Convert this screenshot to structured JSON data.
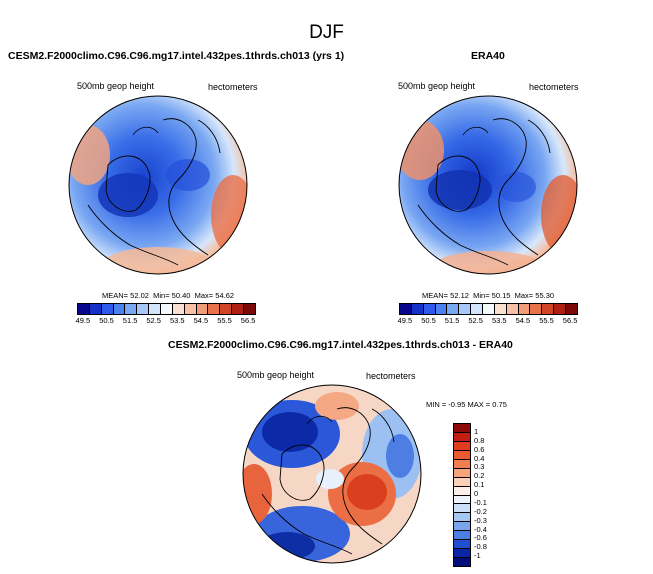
{
  "title": "DJF",
  "panels": [
    {
      "title": "CESM2.F2000climo.C96.C96.mg17.intel.432pes.1thrds.ch013 (yrs 1)",
      "field": "500mb geop height",
      "units": "hectometers",
      "mean_label": "MEAN=",
      "mean": "52.02",
      "min_label": "Min=",
      "min": "50.40",
      "max_label": "Max=",
      "max": "54.62"
    },
    {
      "title": "ERA40",
      "field": "500mb geop height",
      "units": "hectometers",
      "mean_label": "MEAN=",
      "mean": "52.12",
      "min_label": "Min=",
      "min": "50.15",
      "max_label": "Max=",
      "max": "55.30"
    },
    {
      "title": "CESM2.F2000climo.C96.C96.mg17.intel.432pes.1thrds.ch013 - ERA40",
      "field": "500mb geop height",
      "units": "hectometers",
      "minmax": "MIN = -0.95  MAX =  0.75"
    }
  ],
  "abs_colorbar": {
    "labels": [
      "49.5",
      "50.5",
      "51.5",
      "52.5",
      "53.5",
      "54.5",
      "55.5",
      "56.5"
    ],
    "colors": [
      "#08088f",
      "#1432c8",
      "#2d5ae8",
      "#4a82f0",
      "#78a8f4",
      "#a6c8f8",
      "#d2e4fb",
      "#f5f8fc",
      "#fbe0d2",
      "#f8c0a4",
      "#f29c78",
      "#e8724a",
      "#d24428",
      "#b01e14",
      "#7c0808"
    ]
  },
  "diff_colorbar": {
    "labels": [
      "1",
      "0.8",
      "0.6",
      "0.4",
      "0.3",
      "0.2",
      "0.1",
      "0",
      "-0.1",
      "-0.2",
      "-0.3",
      "-0.4",
      "-0.6",
      "-0.8",
      "-1"
    ],
    "colors": [
      "#8c0a0a",
      "#c41e12",
      "#e03c1e",
      "#ec5a30",
      "#f27e50",
      "#f6a47c",
      "#fad0b8",
      "#fdf0e8",
      "#eef4fc",
      "#cddff8",
      "#a6c6f4",
      "#7aa6ee",
      "#4c7ee4",
      "#2050d0",
      "#0a26a8",
      "#040c78"
    ]
  }
}
